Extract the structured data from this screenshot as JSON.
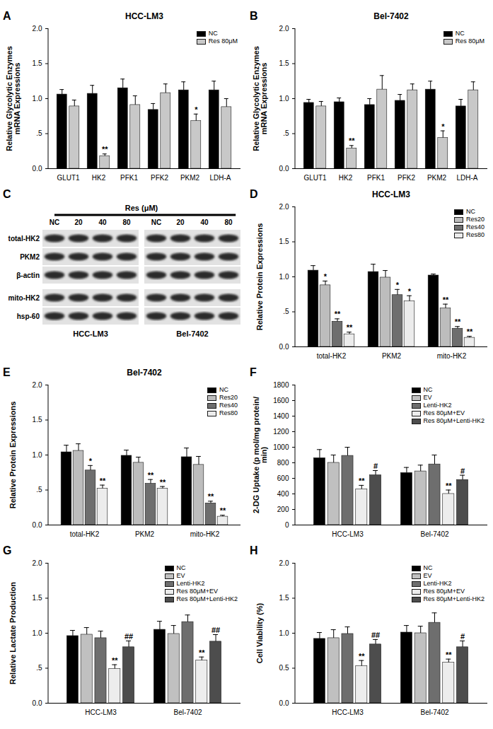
{
  "chart_data": [
    {
      "panel": "A",
      "type": "bar",
      "title": "HCC-LM3",
      "ylabel": "Relative Glycolytic Enzymes mRNA Expressions",
      "categories": [
        "GLUT1",
        "HK2",
        "PFK1",
        "PFK2",
        "PKM2",
        "LDH-A"
      ],
      "ylim": [
        0,
        2
      ],
      "yticks": [
        {
          "value": 0,
          "label": "0.0"
        },
        {
          "value": 0.5,
          "label": ".5"
        },
        {
          "value": 1,
          "label": "1.0"
        },
        1.5,
        {
          "value": 2,
          "label": "2.0"
        }
      ],
      "legend": "top-right",
      "series": [
        {
          "name": "NC",
          "color": "#000000",
          "values": [
            1.06,
            1.07,
            1.15,
            0.84,
            1.12,
            1.12
          ],
          "errors": [
            0.07,
            0.12,
            0.13,
            0.09,
            0.12,
            0.13
          ],
          "annotations": [
            null,
            null,
            null,
            null,
            null,
            null
          ]
        },
        {
          "name": "Res 80μM",
          "color": "#c8c8c8",
          "values": [
            0.89,
            0.18,
            0.91,
            1.08,
            0.68,
            0.88
          ],
          "errors": [
            0.09,
            0.03,
            0.13,
            0.13,
            0.1,
            0.12
          ],
          "annotations": [
            null,
            "**",
            null,
            null,
            "*",
            null
          ]
        }
      ]
    },
    {
      "panel": "B",
      "type": "bar",
      "title": "Bel-7402",
      "ylabel": "Relative Glycolytic Enzymes mRNA Expressions",
      "categories": [
        "GLUT1",
        "HK2",
        "PFK1",
        "PFK2",
        "PKM2",
        "LDH-A"
      ],
      "ylim": [
        0,
        2
      ],
      "yticks": [
        {
          "value": 0,
          "label": "0.0"
        },
        {
          "value": 0.5,
          "label": ".5"
        },
        {
          "value": 1,
          "label": "1.0"
        },
        1.5,
        {
          "value": 2,
          "label": "2.0"
        }
      ],
      "legend": "top-right",
      "series": [
        {
          "name": "NC",
          "color": "#000000",
          "values": [
            0.94,
            0.95,
            0.91,
            0.97,
            1.13,
            0.89
          ],
          "errors": [
            0.05,
            0.06,
            0.09,
            0.09,
            0.12,
            0.1
          ],
          "annotations": [
            null,
            null,
            null,
            null,
            null,
            null
          ]
        },
        {
          "name": "Res 80μM",
          "color": "#c8c8c8",
          "values": [
            0.89,
            0.29,
            1.13,
            1.12,
            0.44,
            1.12
          ],
          "errors": [
            0.07,
            0.04,
            0.2,
            0.09,
            0.1,
            0.12
          ],
          "annotations": [
            null,
            "**",
            null,
            null,
            "*",
            null
          ]
        }
      ]
    },
    {
      "panel": "C",
      "type": "western_blot",
      "header": "Res (μM)",
      "lanes": [
        "NC",
        "20",
        "40",
        "80"
      ],
      "rows": [
        "total-HK2",
        "PKM2",
        "β-actin",
        "mito-HK2",
        "hsp-60"
      ],
      "cell_lines": [
        "HCC-LM3",
        "Bel-7402"
      ]
    },
    {
      "panel": "D",
      "type": "bar",
      "title": "HCC-LM3",
      "ylabel": "Relative Protein Expressions",
      "categories": [
        "total-HK2",
        "PKM2",
        "mito-HK2"
      ],
      "ylim": [
        0,
        2
      ],
      "yticks": [
        {
          "value": 0,
          "label": "0.0"
        },
        {
          "value": 0.5,
          "label": ".5"
        },
        {
          "value": 1,
          "label": "1.0"
        },
        1.5,
        {
          "value": 2,
          "label": "2.0"
        }
      ],
      "legend": "top-right",
      "series": [
        {
          "name": "NC",
          "color": "#000000",
          "values": [
            1.09,
            1.07,
            1.02
          ],
          "errors": [
            0.07,
            0.11,
            0.02
          ],
          "annotations": [
            null,
            null,
            null
          ]
        },
        {
          "name": "Res20",
          "color": "#bdbdbd",
          "values": [
            0.88,
            0.99,
            0.55
          ],
          "errors": [
            0.06,
            0.1,
            0.06
          ],
          "annotations": [
            "*",
            null,
            "**"
          ]
        },
        {
          "name": "Res40",
          "color": "#6e6e6e",
          "values": [
            0.36,
            0.74,
            0.26
          ],
          "errors": [
            0.04,
            0.08,
            0.03
          ],
          "annotations": [
            "**",
            "*",
            "**"
          ]
        },
        {
          "name": "Res80",
          "color": "#ececec",
          "values": [
            0.18,
            0.65,
            0.13
          ],
          "errors": [
            0.03,
            0.08,
            0.02
          ],
          "annotations": [
            "**",
            "*",
            "**"
          ]
        }
      ]
    },
    {
      "panel": "E",
      "type": "bar",
      "title": "Bel-7402",
      "ylabel": "Relative Protein Expressions",
      "categories": [
        "total-HK2",
        "PKM2",
        "mito-HK2"
      ],
      "ylim": [
        0,
        2
      ],
      "yticks": [
        {
          "value": 0,
          "label": "0.0"
        },
        {
          "value": 0.5,
          "label": ".5"
        },
        {
          "value": 1,
          "label": "1.0"
        },
        1.5,
        {
          "value": 2,
          "label": "2.0"
        }
      ],
      "legend": "top-right",
      "series": [
        {
          "name": "NC",
          "color": "#000000",
          "values": [
            1.04,
            0.99,
            0.97
          ],
          "errors": [
            0.1,
            0.08,
            0.13
          ],
          "annotations": [
            null,
            null,
            null
          ]
        },
        {
          "name": "Res20",
          "color": "#bdbdbd",
          "values": [
            1.06,
            0.89,
            0.86
          ],
          "errors": [
            0.1,
            0.08,
            0.12
          ],
          "annotations": [
            null,
            null,
            null
          ]
        },
        {
          "name": "Res40",
          "color": "#6e6e6e",
          "values": [
            0.78,
            0.59,
            0.31
          ],
          "errors": [
            0.07,
            0.06,
            0.03
          ],
          "annotations": [
            "*",
            "**",
            "**"
          ]
        },
        {
          "name": "Res80",
          "color": "#ececec",
          "values": [
            0.52,
            0.52,
            0.12
          ],
          "errors": [
            0.05,
            0.03,
            0.02
          ],
          "annotations": [
            "**",
            "**",
            "**"
          ]
        }
      ]
    },
    {
      "panel": "F",
      "type": "bar",
      "ylabel": "2-DG Uptake (p mol/mg protein/ min)",
      "categories": [
        "HCC-LM3",
        "Bel-7402"
      ],
      "ylim": [
        0,
        1800
      ],
      "yticks": [
        0,
        200,
        400,
        600,
        800,
        1000,
        1200,
        1400,
        1600,
        1800
      ],
      "legend": "top-right",
      "series": [
        {
          "name": "NC",
          "color": "#000000",
          "values": [
            860,
            670
          ],
          "errors": [
            110,
            70
          ],
          "annotations": [
            null,
            null
          ]
        },
        {
          "name": "EV",
          "color": "#c0c0c0",
          "values": [
            800,
            690
          ],
          "errors": [
            100,
            80
          ],
          "annotations": [
            null,
            null
          ]
        },
        {
          "name": "Lenti-HK2",
          "color": "#6e6e6e",
          "values": [
            890,
            780
          ],
          "errors": [
            110,
            120
          ],
          "annotations": [
            null,
            null
          ]
        },
        {
          "name": "Res 80μM+EV",
          "color": "#ededed",
          "values": [
            460,
            400
          ],
          "errors": [
            50,
            50
          ],
          "annotations": [
            "**",
            "**"
          ]
        },
        {
          "name": "Res 80μM+Lenti-HK2",
          "color": "#4d4d4d",
          "values": [
            640,
            580
          ],
          "errors": [
            60,
            60
          ],
          "annotations": [
            "#",
            "#"
          ]
        }
      ]
    },
    {
      "panel": "G",
      "type": "bar",
      "ylabel": "Relative Lactate Production",
      "categories": [
        "HCC-LM3",
        "Bel-7402"
      ],
      "ylim": [
        0,
        2
      ],
      "yticks": [
        {
          "value": 0,
          "label": "0.0"
        },
        {
          "value": 0.5,
          "label": ".5"
        },
        {
          "value": 1,
          "label": "1.0"
        },
        1.5,
        {
          "value": 2,
          "label": "2.0"
        }
      ],
      "legend": "top-right",
      "series": [
        {
          "name": "NC",
          "color": "#000000",
          "values": [
            0.96,
            1.05
          ],
          "errors": [
            0.08,
            0.12
          ],
          "annotations": [
            null,
            null
          ]
        },
        {
          "name": "EV",
          "color": "#c0c0c0",
          "values": [
            0.98,
            0.99
          ],
          "errors": [
            0.1,
            0.12
          ],
          "annotations": [
            null,
            null
          ]
        },
        {
          "name": "Lenti-HK2",
          "color": "#6e6e6e",
          "values": [
            0.93,
            1.16
          ],
          "errors": [
            0.1,
            0.1
          ],
          "annotations": [
            null,
            null
          ]
        },
        {
          "name": "Res 80μM+EV",
          "color": "#ededed",
          "values": [
            0.49,
            0.61
          ],
          "errors": [
            0.06,
            0.05
          ],
          "annotations": [
            "**",
            "**"
          ]
        },
        {
          "name": "Res 80μM+Lenti-HK2",
          "color": "#4d4d4d",
          "values": [
            0.8,
            0.88
          ],
          "errors": [
            0.09,
            0.1
          ],
          "annotations": [
            "##",
            "##"
          ]
        }
      ]
    },
    {
      "panel": "H",
      "type": "bar",
      "ylabel": "Cell Viability (%)",
      "categories": [
        "HCC-LM3",
        "Bel-7402"
      ],
      "ylim": [
        0,
        2
      ],
      "yticks": [
        {
          "value": 0,
          "label": "0.0"
        },
        0.5,
        {
          "value": 1,
          "label": "1.0"
        },
        1.5,
        {
          "value": 2,
          "label": "2.0"
        }
      ],
      "legend": "top-right",
      "series": [
        {
          "name": "NC",
          "color": "#000000",
          "values": [
            0.92,
            1.01
          ],
          "errors": [
            0.09,
            0.1
          ],
          "annotations": [
            null,
            null
          ]
        },
        {
          "name": "EV",
          "color": "#c0c0c0",
          "values": [
            0.93,
            1.0
          ],
          "errors": [
            0.12,
            0.1
          ],
          "annotations": [
            null,
            null
          ]
        },
        {
          "name": "Lenti-HK2",
          "color": "#6e6e6e",
          "values": [
            0.99,
            1.15
          ],
          "errors": [
            0.1,
            0.14
          ],
          "annotations": [
            null,
            null
          ]
        },
        {
          "name": "Res 80μM+EV",
          "color": "#ededed",
          "values": [
            0.53,
            0.58
          ],
          "errors": [
            0.08,
            0.05
          ],
          "annotations": [
            "**",
            "**"
          ]
        },
        {
          "name": "Res 80μM+Lenti-HK2",
          "color": "#4d4d4d",
          "values": [
            0.84,
            0.8
          ],
          "errors": [
            0.07,
            0.09
          ],
          "annotations": [
            "##",
            "#"
          ]
        }
      ]
    }
  ]
}
